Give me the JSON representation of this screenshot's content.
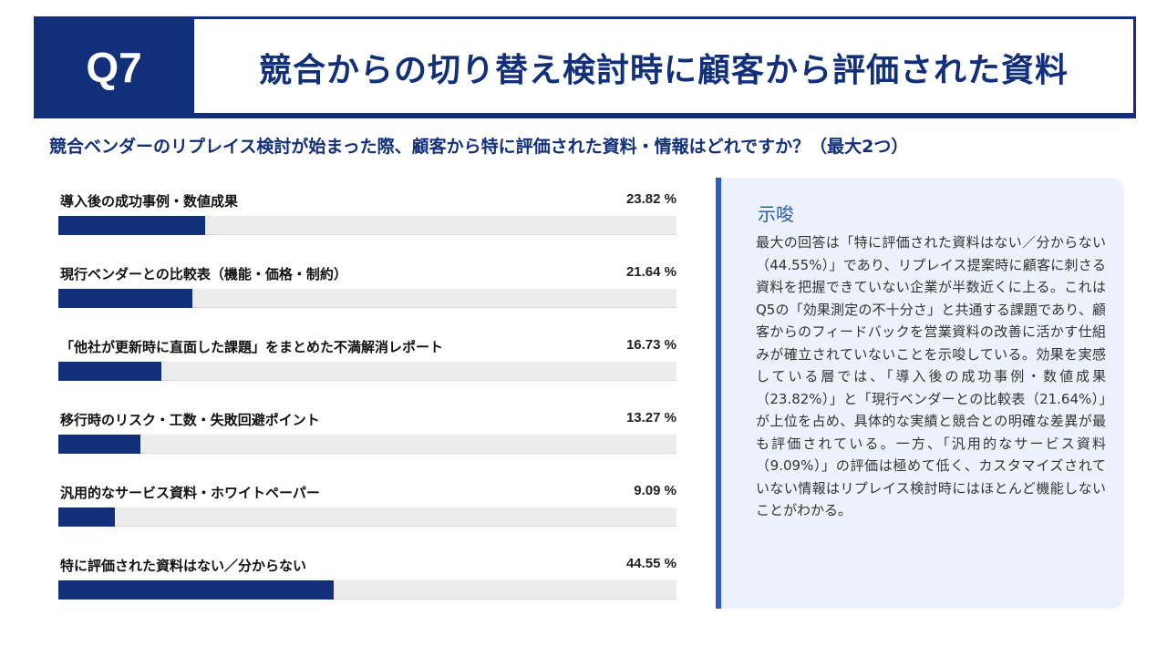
{
  "header": {
    "badge": "Q7",
    "title": "競合からの切り替え検討時に顧客から評価された資料"
  },
  "question": "競合ベンダーのリプレイス検討が始まった際、顧客から特に評価された資料・情報はどれですか？（最大2つ）",
  "chart_data": {
    "type": "bar",
    "orientation": "horizontal",
    "categories": [
      "導入後の成功事例・数値成果",
      "現行ベンダーとの比較表（機能・価格・制約）",
      "「他社が更新時に直面した課題」をまとめた不満解消レポート",
      "移行時のリスク・工数・失敗回避ポイント",
      "汎用的なサービス資料・ホワイトペーパー",
      "特に評価された資料はない／分からない"
    ],
    "values": [
      23.82,
      21.64,
      16.73,
      13.27,
      9.09,
      44.55
    ],
    "value_labels": [
      "23.82 %",
      "21.64 %",
      "16.73 %",
      "13.27 %",
      "9.09 %",
      "44.55 %"
    ],
    "xlim": [
      0,
      100
    ],
    "bar_color": "#12307a",
    "track_color": "#ececec"
  },
  "insight": {
    "title": "示唆",
    "body": "最大の回答は「特に評価された資料はない／分からない（44.55%）」であり、リプレイス提案時に顧客に刺さる資料を把握できていない企業が半数近くに上る。これはQ5の「効果測定の不十分さ」と共通する課題であり、顧客からのフィードバックを営業資料の改善に活かす仕組みが確立されていないことを示唆している。効果を実感している層では、「導入後の成功事例・数値成果（23.82%）」と「現行ベンダーとの比較表（21.64%）」が上位を占め、具体的な実績と競合との明確な差異が最も評価されている。一方、「汎用的なサービス資料（9.09%）」の評価は極めて低く、カスタマイズされていない情報はリプレイス検討時にはほとんど機能しないことがわかる。"
  },
  "colors": {
    "primary": "#12307a",
    "accent": "#2e5cc0",
    "panel_bg": "#edf1fb"
  }
}
